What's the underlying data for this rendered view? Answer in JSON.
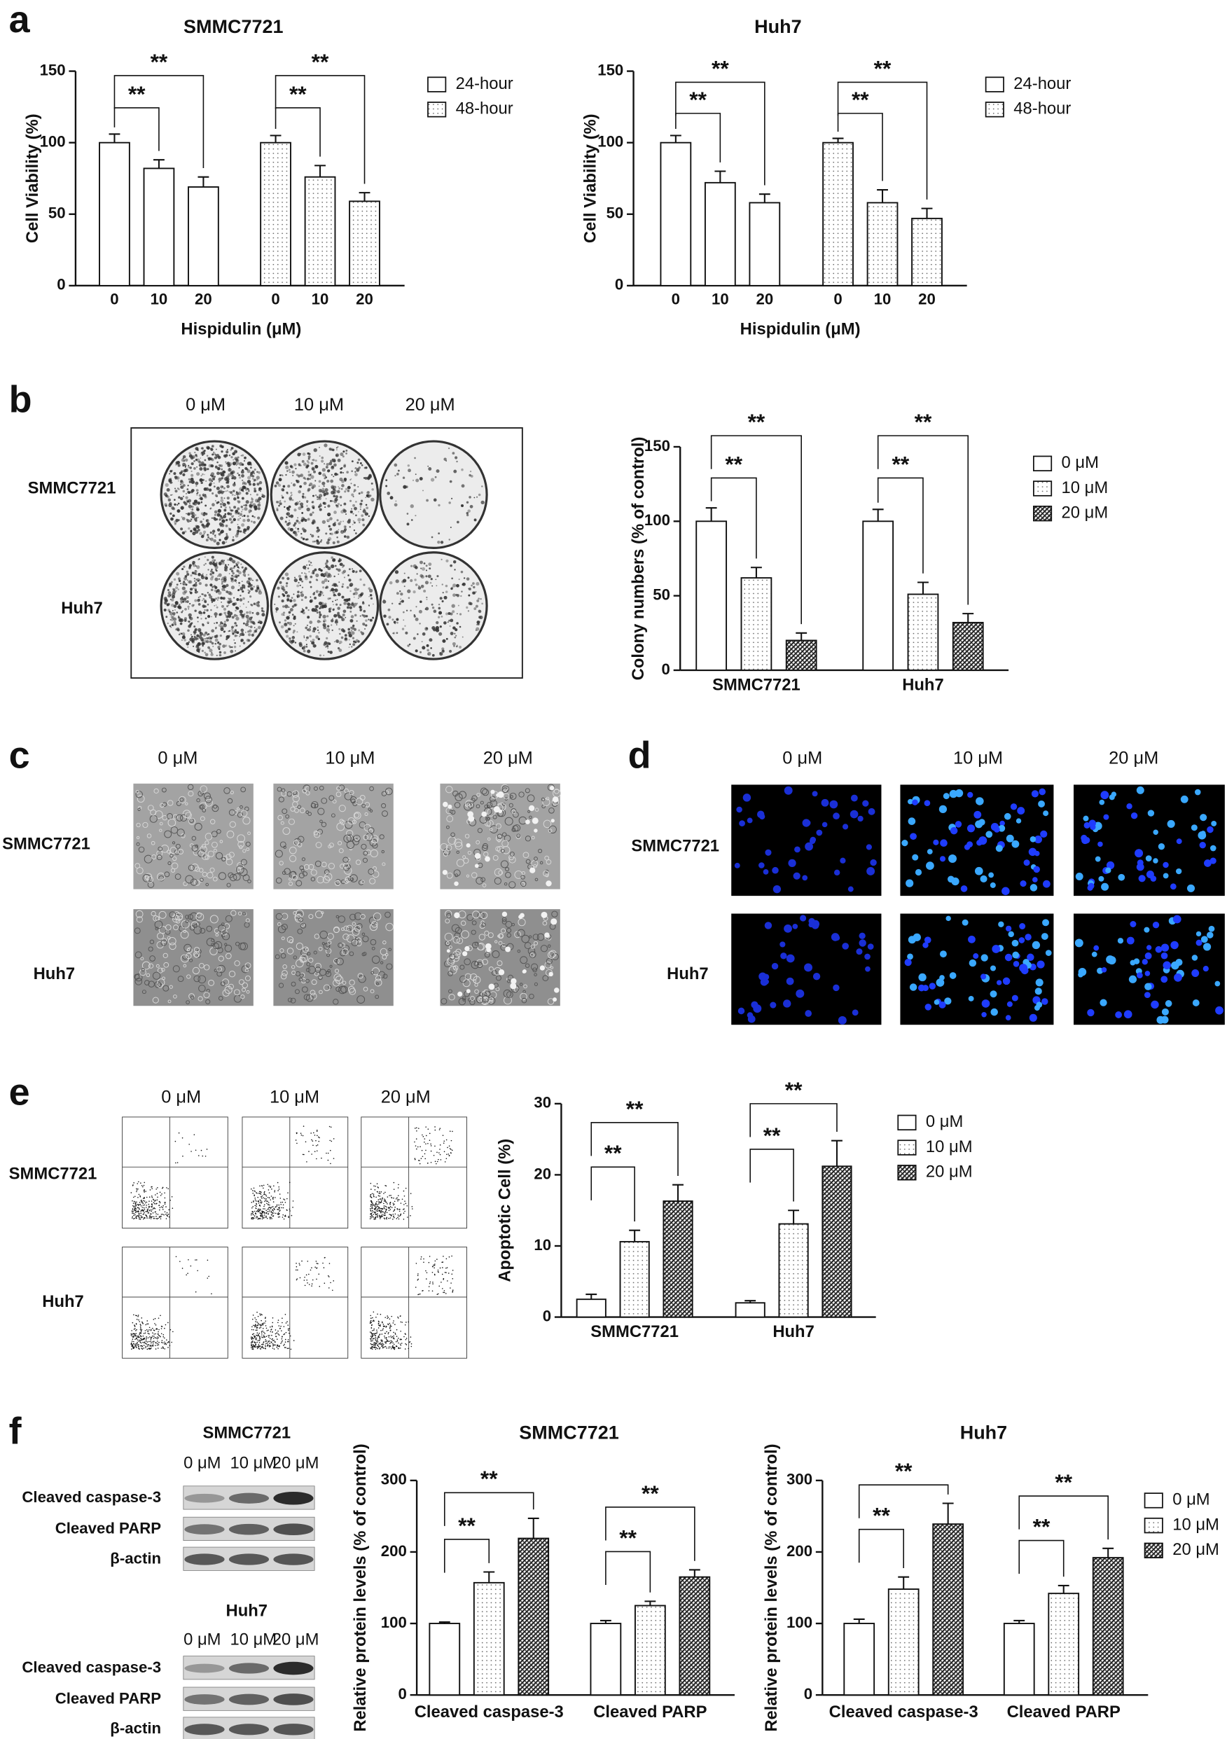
{
  "panel_labels": [
    "a",
    "b",
    "c",
    "d",
    "e",
    "f"
  ],
  "colony_assay": {
    "columns": [
      "0 μM",
      "10 μM",
      "20 μM"
    ],
    "rows": [
      "SMMC7721",
      "Huh7"
    ]
  },
  "morphology": {
    "columns": [
      "0 μM",
      "10 μM",
      "20 μM"
    ],
    "rows": [
      "SMMC7721",
      "Huh7"
    ]
  },
  "hoechst_staining": {
    "columns": [
      "0 μM",
      "10 μM",
      "20 μM"
    ],
    "rows": [
      "SMMC7721",
      "Huh7"
    ]
  },
  "flow_cytometry": {
    "columns": [
      "0 μM",
      "10 μM",
      "20 μM"
    ],
    "rows": [
      "SMMC7721",
      "Huh7"
    ]
  },
  "western_blot": [
    {
      "title": "SMMC7721",
      "columns": [
        "0 μM",
        "10 μM",
        "20 μM"
      ],
      "bands": [
        "Cleaved caspase-3",
        "Cleaved PARP",
        "β-actin"
      ]
    },
    {
      "title": "Huh7",
      "columns": [
        "0 μM",
        "10 μM",
        "20 μM"
      ],
      "bands": [
        "Cleaved caspase-3",
        "Cleaved PARP",
        "β-actin"
      ]
    }
  ],
  "chart_data": [
    {
      "type": "bar",
      "layout": "series-clusters",
      "title": "SMMC7721",
      "x_label": "Hispidulin (μM)",
      "y_label": "Cell Viability (%)",
      "categories": [
        "0",
        "10",
        "20"
      ],
      "series": [
        {
          "name": "24-hour",
          "color": "#ffffff",
          "pattern": "none",
          "values": [
            100,
            82,
            69
          ],
          "errors": [
            6,
            6,
            7
          ]
        },
        {
          "name": "48-hour",
          "color": "#666666",
          "pattern": "dots",
          "values": [
            100,
            76,
            59
          ],
          "errors": [
            5,
            8,
            6
          ]
        }
      ],
      "ylim": [
        0,
        150
      ],
      "yticks": [
        0,
        50,
        100,
        150
      ],
      "legend": true,
      "annotations": [
        {
          "text": "**",
          "group": 0,
          "bars": [
            0,
            1
          ]
        },
        {
          "text": "**",
          "group": 0,
          "bars": [
            0,
            2
          ]
        },
        {
          "text": "**",
          "group": 1,
          "bars": [
            0,
            1
          ]
        },
        {
          "text": "**",
          "group": 1,
          "bars": [
            0,
            2
          ]
        }
      ]
    },
    {
      "type": "bar",
      "layout": "series-clusters",
      "title": "Huh7",
      "x_label": "Hispidulin (μM)",
      "y_label": "Cell Viability (%)",
      "categories": [
        "0",
        "10",
        "20"
      ],
      "series": [
        {
          "name": "24-hour",
          "color": "#ffffff",
          "pattern": "none",
          "values": [
            100,
            72,
            58
          ],
          "errors": [
            5,
            8,
            6
          ]
        },
        {
          "name": "48-hour",
          "color": "#666666",
          "pattern": "dots",
          "values": [
            100,
            58,
            47
          ],
          "errors": [
            3,
            9,
            7
          ]
        }
      ],
      "ylim": [
        0,
        150
      ],
      "yticks": [
        0,
        50,
        100,
        150
      ],
      "legend": true,
      "annotations": [
        {
          "text": "**",
          "group": 0,
          "bars": [
            0,
            1
          ]
        },
        {
          "text": "**",
          "group": 0,
          "bars": [
            0,
            2
          ]
        },
        {
          "text": "**",
          "group": 1,
          "bars": [
            0,
            1
          ]
        },
        {
          "text": "**",
          "group": 1,
          "bars": [
            0,
            2
          ]
        }
      ]
    },
    {
      "type": "bar",
      "layout": "category-clusters",
      "y_label": "Colony numbers (% of control)",
      "categories": [
        "SMMC7721",
        "Huh7"
      ],
      "series": [
        {
          "name": "0 μM",
          "color": "#ffffff",
          "pattern": "none",
          "values": [
            100,
            100
          ],
          "errors": [
            9,
            8
          ]
        },
        {
          "name": "10 μM",
          "color": "#666666",
          "pattern": "dots",
          "values": [
            62,
            51
          ],
          "errors": [
            7,
            8
          ]
        },
        {
          "name": "20 μM",
          "color": "#222222",
          "pattern": "hatch",
          "values": [
            20,
            32
          ],
          "errors": [
            5,
            6
          ]
        }
      ],
      "ylim": [
        0,
        150
      ],
      "yticks": [
        0,
        50,
        100,
        150
      ],
      "legend": true,
      "annotations": [
        {
          "text": "**",
          "group": 0,
          "bars": [
            0,
            1
          ]
        },
        {
          "text": "**",
          "group": 0,
          "bars": [
            0,
            2
          ]
        },
        {
          "text": "**",
          "group": 1,
          "bars": [
            0,
            1
          ]
        },
        {
          "text": "**",
          "group": 1,
          "bars": [
            0,
            2
          ]
        }
      ]
    },
    {
      "type": "bar",
      "layout": "category-clusters",
      "y_label": "Apoptotic Cell (%)",
      "categories": [
        "SMMC7721",
        "Huh7"
      ],
      "series": [
        {
          "name": "0 μM",
          "color": "#ffffff",
          "pattern": "none",
          "values": [
            2.5,
            2.0
          ],
          "errors": [
            0.7,
            0.3
          ]
        },
        {
          "name": "10 μM",
          "color": "#666666",
          "pattern": "dots",
          "values": [
            10.6,
            13.1
          ],
          "errors": [
            1.6,
            1.9
          ]
        },
        {
          "name": "20 μM",
          "color": "#222222",
          "pattern": "hatch",
          "values": [
            16.3,
            21.2
          ],
          "errors": [
            2.3,
            3.6
          ]
        }
      ],
      "ylim": [
        0,
        30
      ],
      "yticks": [
        0,
        10,
        20,
        30
      ],
      "legend": true,
      "annotations": [
        {
          "text": "**",
          "group": 0,
          "bars": [
            0,
            1
          ]
        },
        {
          "text": "**",
          "group": 0,
          "bars": [
            0,
            2
          ]
        },
        {
          "text": "**",
          "group": 1,
          "bars": [
            0,
            1
          ]
        },
        {
          "text": "**",
          "group": 1,
          "bars": [
            0,
            2
          ]
        }
      ]
    },
    {
      "type": "bar",
      "layout": "category-clusters",
      "title": "SMMC7721",
      "y_label": "Relative protein levels (% of control)",
      "categories": [
        "Cleaved caspase-3",
        "Cleaved PARP"
      ],
      "series": [
        {
          "name": "0 μM",
          "color": "#ffffff",
          "pattern": "none",
          "values": [
            100,
            100
          ],
          "errors": [
            2,
            4
          ]
        },
        {
          "name": "10 μM",
          "color": "#666666",
          "pattern": "dots",
          "values": [
            157,
            125
          ],
          "errors": [
            15,
            6
          ]
        },
        {
          "name": "20 μM",
          "color": "#222222",
          "pattern": "hatch",
          "values": [
            219,
            165
          ],
          "errors": [
            28,
            10
          ]
        }
      ],
      "ylim": [
        0,
        300
      ],
      "yticks": [
        0,
        100,
        200,
        300
      ],
      "legend": false,
      "annotations": [
        {
          "text": "**",
          "group": 0,
          "bars": [
            0,
            1
          ]
        },
        {
          "text": "**",
          "group": 0,
          "bars": [
            0,
            2
          ]
        },
        {
          "text": "**",
          "group": 1,
          "bars": [
            0,
            1
          ]
        },
        {
          "text": "**",
          "group": 1,
          "bars": [
            0,
            2
          ]
        }
      ]
    },
    {
      "type": "bar",
      "layout": "category-clusters",
      "title": "Huh7",
      "y_label": "Relative protein levels (% of control)",
      "categories": [
        "Cleaved caspase-3",
        "Cleaved PARP"
      ],
      "series": [
        {
          "name": "0 μM",
          "color": "#ffffff",
          "pattern": "none",
          "values": [
            100,
            100
          ],
          "errors": [
            6,
            4
          ]
        },
        {
          "name": "10 μM",
          "color": "#666666",
          "pattern": "dots",
          "values": [
            148,
            142
          ],
          "errors": [
            17,
            11
          ]
        },
        {
          "name": "20 μM",
          "color": "#222222",
          "pattern": "hatch",
          "values": [
            239,
            192
          ],
          "errors": [
            29,
            13
          ]
        }
      ],
      "ylim": [
        0,
        300
      ],
      "yticks": [
        0,
        100,
        200,
        300
      ],
      "legend": true,
      "annotations": [
        {
          "text": "**",
          "group": 0,
          "bars": [
            0,
            1
          ]
        },
        {
          "text": "**",
          "group": 0,
          "bars": [
            0,
            2
          ]
        },
        {
          "text": "**",
          "group": 1,
          "bars": [
            0,
            1
          ]
        },
        {
          "text": "**",
          "group": 1,
          "bars": [
            0,
            2
          ]
        }
      ]
    }
  ]
}
